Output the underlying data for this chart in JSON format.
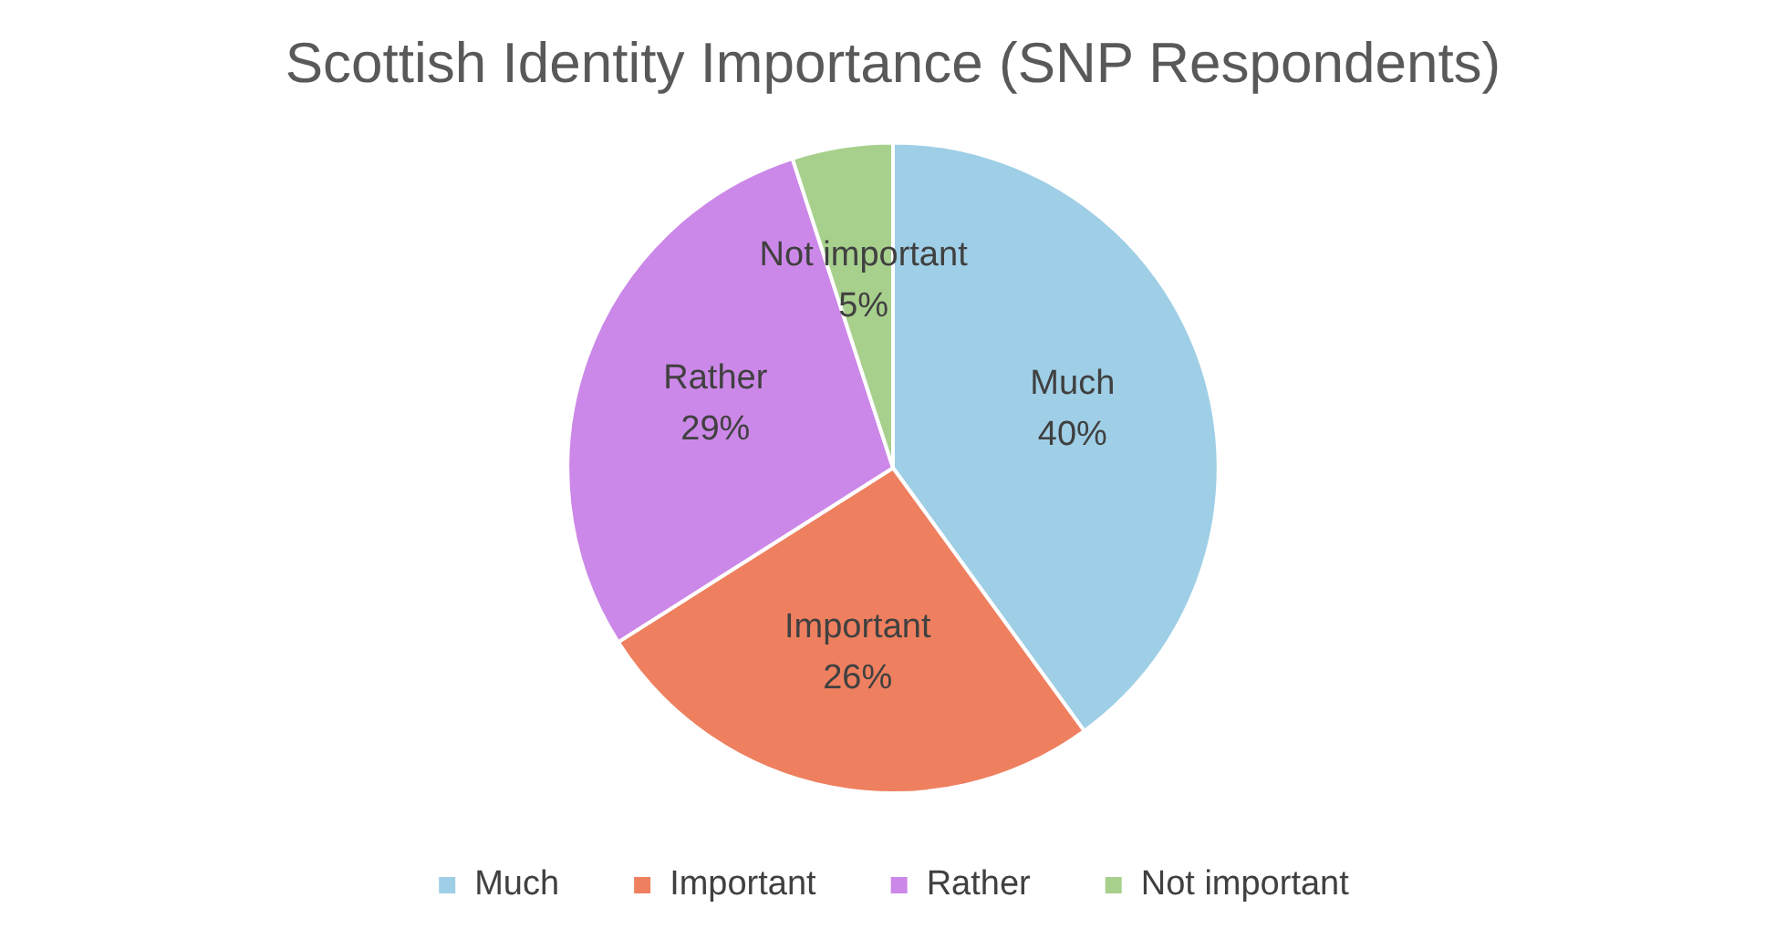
{
  "chart_data": {
    "type": "pie",
    "title": "Scottish Identity Importance (SNP Respondents)",
    "categories": [
      "Much",
      "Important",
      "Rather",
      "Not important"
    ],
    "values": [
      40,
      26,
      29,
      5
    ],
    "value_labels": [
      "40%",
      "26%",
      "29%",
      "5%"
    ],
    "colors": [
      "#9fcfe6",
      "#ee8060",
      "#cc88e8",
      "#a8d08d"
    ],
    "legend": "bottom"
  }
}
